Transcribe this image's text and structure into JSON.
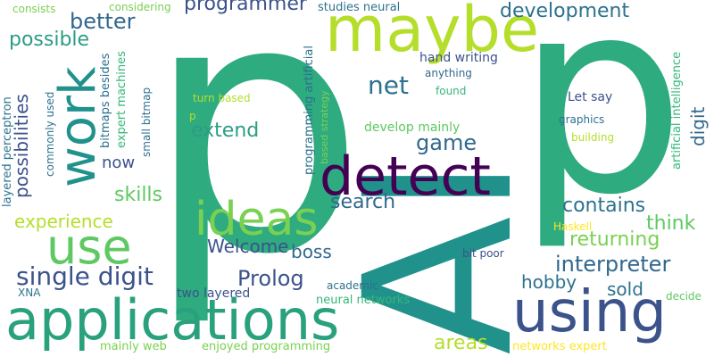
{
  "words": {
    "p1": "p",
    "p2": "p",
    "ai": "AI",
    "maybe": "maybe",
    "detect": "detect",
    "work": "work",
    "ideas": "ideas",
    "use": "use",
    "applications": "applications",
    "using": "using",
    "net": "net",
    "single_digit": "single digit",
    "prolog": "Prolog",
    "interpreter": "interpreter",
    "game": "game",
    "extend": "extend",
    "better": "better",
    "possible": "possible",
    "possibilities": "possibilities",
    "development": "development",
    "programmer": "programmer",
    "search": "search",
    "contains": "contains",
    "returning": "returning",
    "think": "think",
    "experience": "experience",
    "skills": "skills",
    "welcome": "Welcome",
    "boss": "boss",
    "hobby": "hobby",
    "sold": "sold",
    "areas": "areas",
    "now": "now",
    "digit": "digit",
    "consists": "consists",
    "considering": "considering",
    "studies_neural": "studies neural",
    "hand_writing": "hand writing",
    "anything": "anything",
    "found": "found",
    "let_say": "Let say",
    "graphics": "graphics",
    "building": "building",
    "develop_mainly": "develop mainly",
    "turn_based": "turn based",
    "p_small": "p",
    "haskell": "Haskell",
    "bit_poor": "bit poor",
    "academic": "academic",
    "neural_networks": "neural networks",
    "two_layered": "two layered",
    "xna": "XNA",
    "decide": "decide",
    "mainly_web": "mainly web",
    "enjoyed_programming": "enjoyed programming",
    "networks_expert": "networks expert",
    "layered_perceptron": "layered perceptron",
    "commonly_used": "commonly used",
    "bitmaps_besides": "bitmaps besides",
    "expert_machines": "expert machines",
    "small_bitmap": "small bitmap",
    "programming_artificial": "programming artificial",
    "based_strategy": "based strategy",
    "artificial_intelligence": "artificial intelligence"
  },
  "palette": {
    "dark_purple": "#440154",
    "indigo": "#3b528b",
    "blue": "#31688e",
    "teal": "#21918c",
    "green": "#35b779",
    "light_green": "#5ec962",
    "yellow_green": "#b5de2b",
    "yellow": "#fde725"
  }
}
